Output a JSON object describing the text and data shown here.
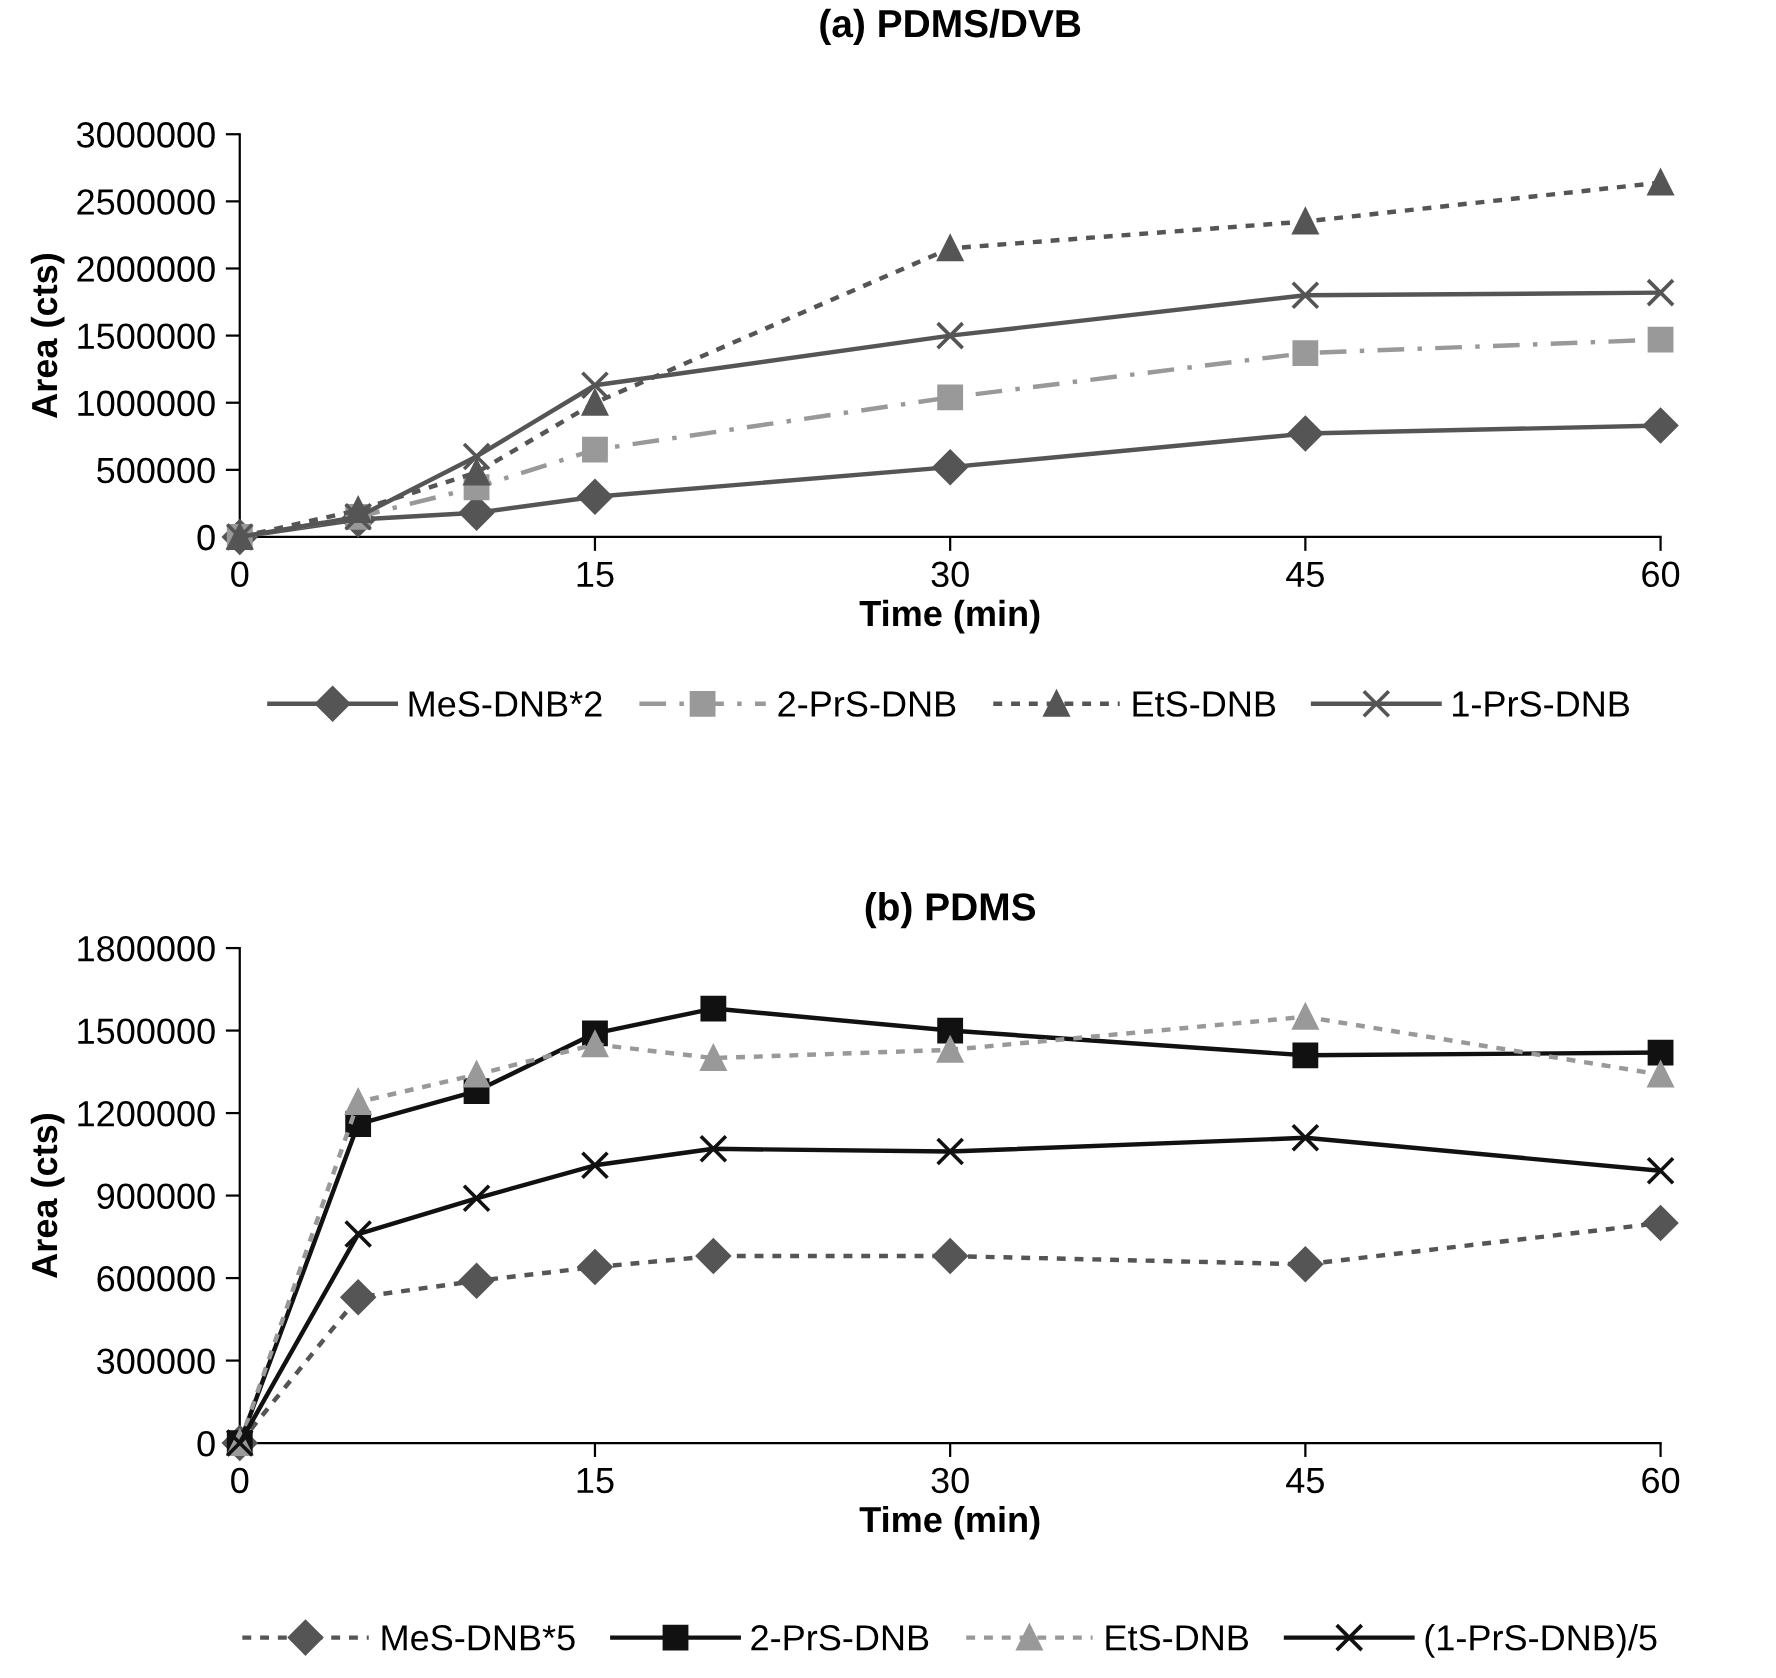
{
  "chart_data": [
    {
      "type": "line",
      "title": "(a) PDMS/DVB",
      "xlabel": "Time (min)",
      "ylabel": "Area (cts)",
      "x": [
        0,
        5,
        10,
        15,
        30,
        45,
        60
      ],
      "xlim": [
        0,
        60
      ],
      "xticks": [
        0,
        15,
        30,
        45,
        60
      ],
      "ylim": [
        0,
        3000000
      ],
      "yticks": [
        0,
        500000,
        1000000,
        1500000,
        2000000,
        2500000,
        3000000
      ],
      "grid": false,
      "legend": "bottom",
      "series": [
        {
          "name": "MeS-DNB*2",
          "color": "#555555",
          "marker": "diamond",
          "line_style": "solid",
          "values": [
            0,
            130000,
            180000,
            300000,
            520000,
            770000,
            830000
          ]
        },
        {
          "name": "2-PrS-DNB",
          "color": "#999999",
          "marker": "square",
          "line_style": "dashed",
          "values": [
            0,
            150000,
            370000,
            650000,
            1040000,
            1370000,
            1470000
          ]
        },
        {
          "name": "EtS-DNB",
          "color": "#555555",
          "marker": "triangle",
          "line_style": "dotted",
          "values": [
            0,
            200000,
            480000,
            1000000,
            2150000,
            2350000,
            2640000
          ]
        },
        {
          "name": "1-PrS-DNB",
          "color": "#555555",
          "marker": "cross",
          "line_style": "solid",
          "values": [
            0,
            150000,
            600000,
            1130000,
            1500000,
            1800000,
            1820000
          ]
        }
      ]
    },
    {
      "type": "line",
      "title": "(b) PDMS",
      "xlabel": "Time (min)",
      "ylabel": "Area (cts)",
      "x": [
        0,
        5,
        10,
        15,
        20,
        30,
        45,
        60
      ],
      "xlim": [
        0,
        60
      ],
      "xticks": [
        0,
        15,
        30,
        45,
        60
      ],
      "ylim": [
        0,
        1800000
      ],
      "yticks": [
        0,
        300000,
        600000,
        900000,
        1200000,
        1500000,
        1800000
      ],
      "grid": false,
      "legend": "bottom",
      "series": [
        {
          "name": "MeS-DNB*5",
          "color": "#555555",
          "marker": "diamond",
          "line_style": "dotted",
          "values": [
            0,
            530000,
            590000,
            640000,
            680000,
            680000,
            650000,
            800000
          ]
        },
        {
          "name": "2-PrS-DNB",
          "color": "#111111",
          "marker": "square",
          "line_style": "solid",
          "values": [
            0,
            1160000,
            1280000,
            1490000,
            1580000,
            1500000,
            1410000,
            1420000
          ]
        },
        {
          "name": "EtS-DNB",
          "color": "#999999",
          "marker": "triangle",
          "line_style": "dotted",
          "values": [
            0,
            1240000,
            1340000,
            1450000,
            1400000,
            1430000,
            1550000,
            1340000
          ]
        },
        {
          "name": "(1-PrS-DNB)/5",
          "color": "#111111",
          "marker": "cross",
          "line_style": "solid",
          "values": [
            0,
            760000,
            890000,
            1010000,
            1070000,
            1060000,
            1110000,
            990000
          ]
        }
      ]
    }
  ]
}
